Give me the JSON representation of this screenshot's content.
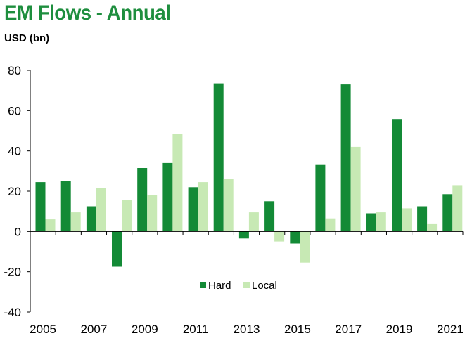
{
  "chart_data": {
    "type": "bar",
    "title": "EM Flows - Annual",
    "ylabel": "USD (bn)",
    "xlabel": "",
    "categories": [
      "2005",
      "2006",
      "2007",
      "2008",
      "2009",
      "2010",
      "2011",
      "2012",
      "2013",
      "2014",
      "2015",
      "2016",
      "2017",
      "2018",
      "2019",
      "2020",
      "2021"
    ],
    "x_tick_labels": [
      "2005",
      "2007",
      "2009",
      "2011",
      "2013",
      "2015",
      "2017",
      "2019",
      "2021"
    ],
    "series": [
      {
        "name": "Hard",
        "color": "#138a36",
        "values": [
          24.5,
          25,
          12.5,
          -17.5,
          31.5,
          34,
          22,
          73.5,
          -3.5,
          15,
          -6,
          33,
          73,
          9,
          55.5,
          12.5,
          18.5
        ]
      },
      {
        "name": "Local",
        "color": "#c7e9b4",
        "values": [
          6,
          9.5,
          21.5,
          15.5,
          18,
          48.5,
          24.5,
          26,
          9.5,
          -5,
          -15.5,
          6.5,
          42,
          9.5,
          11.5,
          4,
          23
        ]
      }
    ],
    "ylim": [
      -40,
      80
    ],
    "yticks": [
      -40,
      -20,
      0,
      20,
      40,
      60,
      80
    ],
    "grid": false,
    "legend_placement": "bottom-center"
  }
}
